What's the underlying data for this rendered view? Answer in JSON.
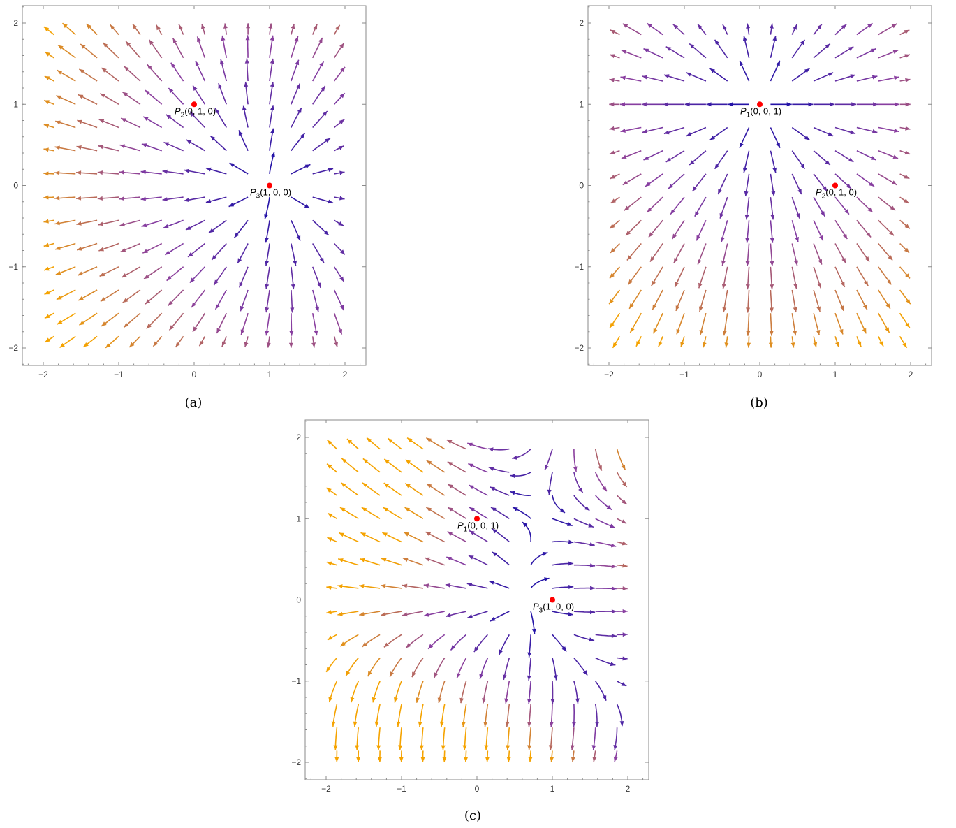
{
  "chart_data": [
    {
      "type": "streamplot",
      "panel": "(a)",
      "caption": "(a)",
      "field": "a",
      "xlim": [
        -2,
        2
      ],
      "ylim": [
        -2,
        2
      ],
      "xticks": [
        "−2",
        "−1",
        "0",
        "1",
        "2"
      ],
      "yticks": [
        "−2",
        "−1",
        "0",
        "1",
        "2"
      ],
      "points": [
        {
          "x": 0,
          "y": 1,
          "sub": "2",
          "label": "(0, 1, 0)"
        },
        {
          "x": 1,
          "y": 0,
          "sub": "3",
          "label": "(1, 0, 0)"
        }
      ]
    },
    {
      "type": "streamplot",
      "panel": "(b)",
      "caption": "(b)",
      "field": "b",
      "xlim": [
        -2,
        2
      ],
      "ylim": [
        -2,
        2
      ],
      "xticks": [
        "−2",
        "−1",
        "0",
        "1",
        "2"
      ],
      "yticks": [
        "−2",
        "−1",
        "0",
        "1",
        "2"
      ],
      "points": [
        {
          "x": 0,
          "y": 1,
          "sub": "1",
          "label": "(0, 0, 1)"
        },
        {
          "x": 1,
          "y": 0,
          "sub": "2",
          "label": "(0, 1, 0)"
        }
      ]
    },
    {
      "type": "streamplot",
      "panel": "(c)",
      "caption": "(c)",
      "field": "c",
      "xlim": [
        -2,
        2
      ],
      "ylim": [
        -2,
        2
      ],
      "xticks": [
        "−2",
        "−1",
        "0",
        "1",
        "2"
      ],
      "yticks": [
        "−2",
        "−1",
        "0",
        "1",
        "2"
      ],
      "points": [
        {
          "x": 0,
          "y": 1,
          "sub": "1",
          "label": "(0, 0, 1)"
        },
        {
          "x": 1,
          "y": 0,
          "sub": "3",
          "label": "(1, 0, 0)"
        }
      ]
    }
  ],
  "colors": {
    "stream_low": "#1a0fa8",
    "stream_mid": "#8a3fa0",
    "stream_high": "#f5a300",
    "point": "#ff0000",
    "frame": "#8a8a8a"
  }
}
